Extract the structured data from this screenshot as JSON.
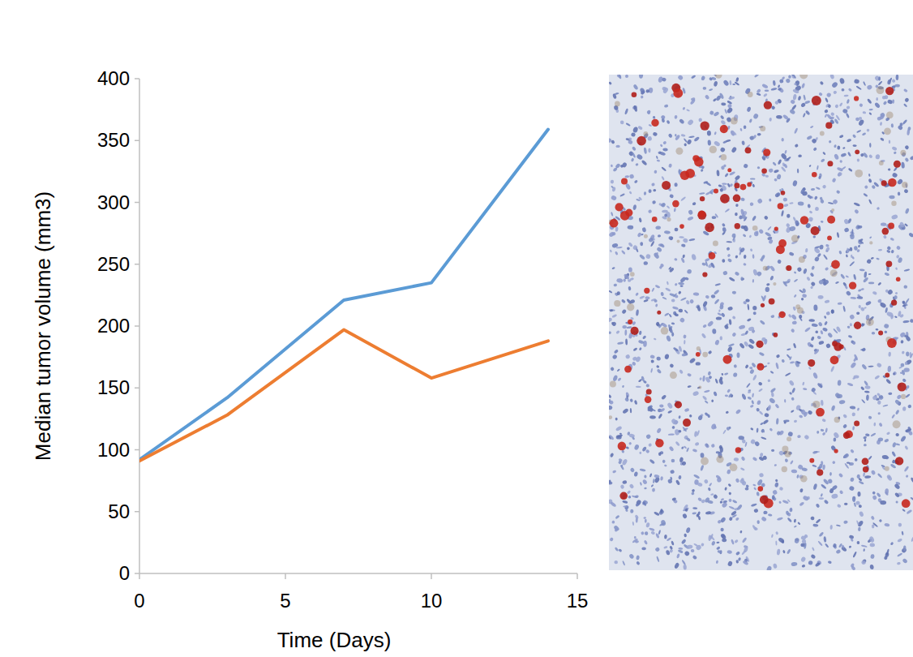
{
  "chart_data": {
    "type": "line",
    "x_label": "Time (Days)",
    "y_label": "Median tumor volume (mm3)",
    "x": [
      0,
      3,
      7,
      10,
      14
    ],
    "series": [
      {
        "color": "#5b9bd5",
        "values": [
          92,
          142,
          221,
          235,
          359
        ]
      },
      {
        "color": "#ed7d31",
        "values": [
          91,
          128,
          197,
          158,
          188
        ]
      }
    ],
    "xlim": [
      0,
      15
    ],
    "xticks": [
      0,
      5,
      10,
      15
    ],
    "ylim": [
      0,
      400
    ],
    "yticks": [
      0,
      50,
      100,
      150,
      200,
      250,
      300,
      350,
      400
    ],
    "grid": false
  }
}
